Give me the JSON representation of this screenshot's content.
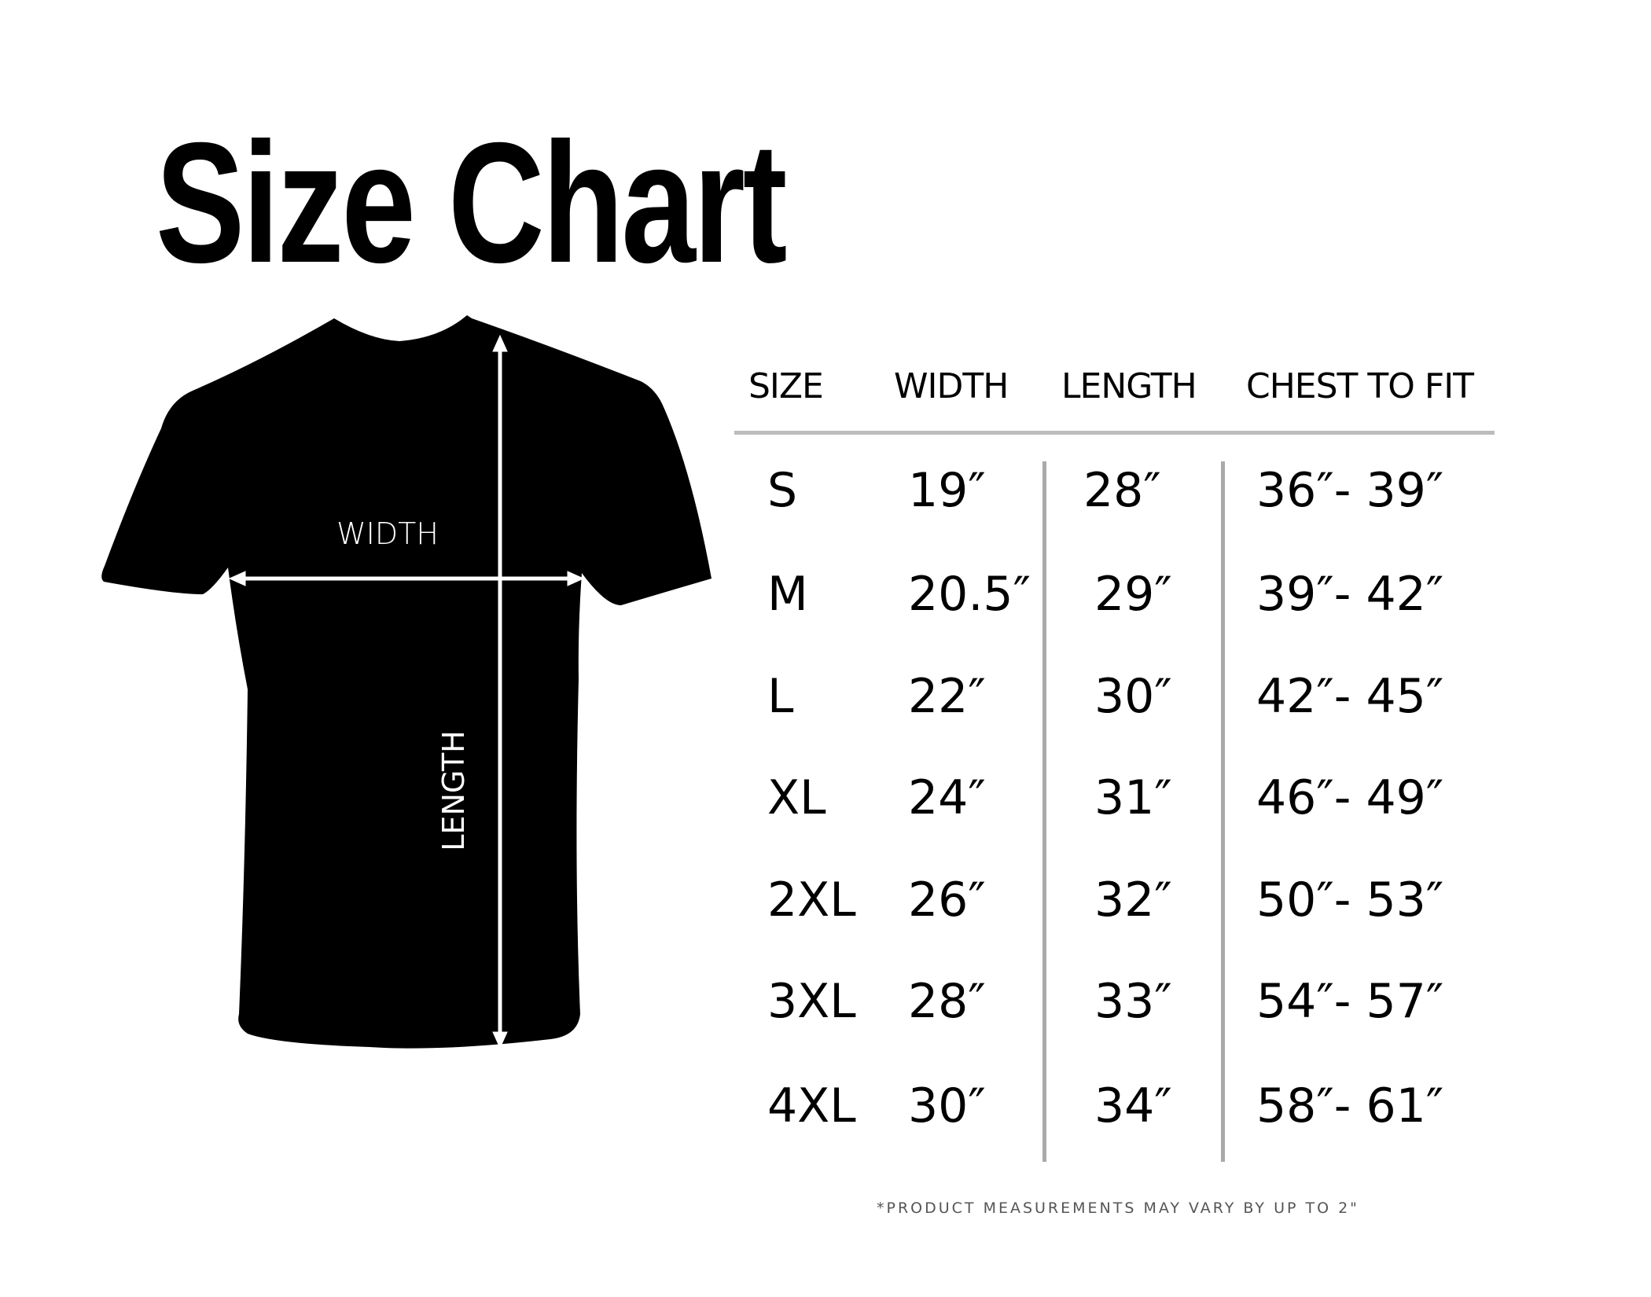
{
  "title": "Size Chart",
  "diagram": {
    "width_label": "WIDTH",
    "length_label": "LENGTH",
    "shirt_color": "#000000",
    "arrow_color": "#ffffff"
  },
  "table": {
    "headers": [
      "SIZE",
      "WIDTH",
      "LENGTH",
      "CHEST TO FIT"
    ],
    "rows": [
      {
        "size": "S",
        "width": "19″",
        "length": "28″",
        "chest": "36″- 39″"
      },
      {
        "size": "M",
        "width": "20.5″",
        "length": "29″",
        "chest": "39″- 42″"
      },
      {
        "size": "L",
        "width": "22″",
        "length": "30″",
        "chest": "42″- 45″"
      },
      {
        "size": "XL",
        "width": "24″",
        "length": "31″",
        "chest": "46″- 49″"
      },
      {
        "size": "2XL",
        "width": "26″",
        "length": "32″",
        "chest": "50″- 53″"
      },
      {
        "size": "3XL",
        "width": "28″",
        "length": "33″",
        "chest": "54″- 57″"
      },
      {
        "size": "4XL",
        "width": "30″",
        "length": "34″",
        "chest": "58″- 61″"
      }
    ]
  },
  "footnote": "*PRODUCT MEASUREMENTS MAY VARY BY UP TO 2\""
}
